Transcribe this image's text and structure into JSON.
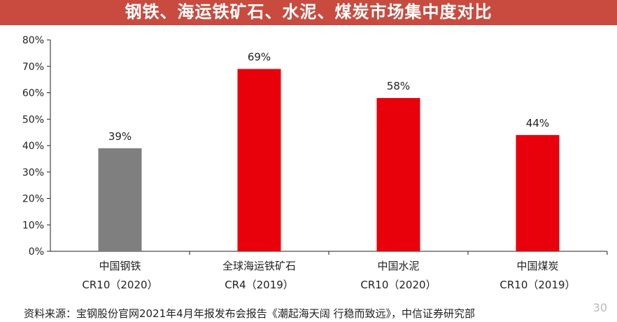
{
  "title": "钢铁、海运铁矿石、水泥、煤炭市场集中度对比",
  "source": "资料来源：宝钢股份官网2021年4月年报发布会报告《潮起海天阔 行稳而致远》，中信证券研究部",
  "page_number": "30",
  "colors": {
    "header": "#c94b3f",
    "gray_bar": "#7f7f7f",
    "red_bar": "#e8000b"
  },
  "chart_data": {
    "type": "bar",
    "categories": [
      {
        "line1": "中国钢铁",
        "line2": "CR10（2020）"
      },
      {
        "line1": "全球海运铁矿石",
        "line2": "CR4（2019）"
      },
      {
        "line1": "中国水泥",
        "line2": "CR10（2020）"
      },
      {
        "line1": "中国煤炭",
        "line2": "CR10（2019）"
      }
    ],
    "values": [
      39,
      69,
      58,
      44
    ],
    "value_labels": [
      "39%",
      "69%",
      "58%",
      "44%"
    ],
    "bar_colors": [
      "#7f7f7f",
      "#e8000b",
      "#e8000b",
      "#e8000b"
    ],
    "ylim": [
      0,
      80
    ],
    "yticks": [
      0,
      10,
      20,
      30,
      40,
      50,
      60,
      70,
      80
    ],
    "ytick_labels": [
      "0%",
      "10%",
      "20%",
      "30%",
      "40%",
      "50%",
      "60%",
      "70%",
      "80%"
    ],
    "grid": false,
    "xlabel": "",
    "ylabel": ""
  }
}
